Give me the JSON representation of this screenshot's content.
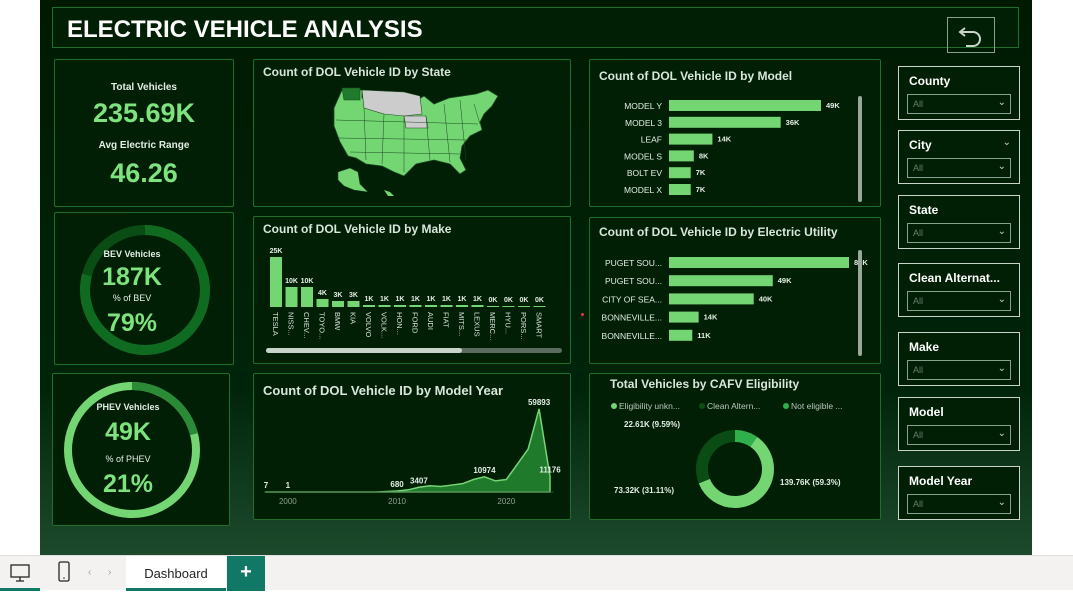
{
  "header": {
    "title": "ELECTRIC VEHICLE ANALYSIS",
    "back_icon": "undo-arrow-icon"
  },
  "kpis": {
    "total_label": "Total Vehicles",
    "total_value": "235.69K",
    "range_label": "Avg Electric Range",
    "range_value": "46.26"
  },
  "bev": {
    "label": "BEV Vehicles",
    "value": "187K",
    "pct_label": "% of BEV",
    "pct_value": "79%",
    "fraction": 0.79
  },
  "phev": {
    "label": "PHEV Vehicles",
    "value": "49K",
    "pct_label": "% of PHEV",
    "pct_value": "21%",
    "fraction": 0.21
  },
  "map_panel": {
    "title": "Count of DOL Vehicle ID by State"
  },
  "make_panel": {
    "title": "Count of DOL Vehicle ID by Make"
  },
  "model_panel": {
    "title": "Count of DOL Vehicle ID by Model"
  },
  "utility_panel": {
    "title": "Count of DOL Vehicle ID by Electric Utility"
  },
  "year_panel": {
    "title": "Count of DOL Vehicle ID by Model Year"
  },
  "cafv_panel": {
    "title": "Total Vehicles by CAFV Eligibility"
  },
  "slicers": [
    {
      "label": "County",
      "value": "All"
    },
    {
      "label": "City",
      "value": "All"
    },
    {
      "label": "State",
      "value": "All"
    },
    {
      "label": "Clean Alternat...",
      "value": "All"
    },
    {
      "label": "Make",
      "value": "All"
    },
    {
      "label": "Model",
      "value": "All"
    },
    {
      "label": "Model Year",
      "value": "All"
    }
  ],
  "bottom": {
    "desktop_icon": "desktop-view-icon",
    "mobile_icon": "mobile-view-icon",
    "tab_label": "Dashboard",
    "add_label": "+"
  },
  "colors": {
    "bar": "#73d673",
    "accent": "#117865",
    "dark_ring": "#0a4d14",
    "light_ring": "#73d673"
  },
  "chart_data": [
    {
      "type": "bar",
      "orientation": "vertical",
      "title": "Count of DOL Vehicle ID by Make",
      "categories": [
        "TESLA",
        "NISS...",
        "CHEV...",
        "TOYO...",
        "BMW",
        "KIA",
        "VOLVO",
        "VOLK...",
        "HON...",
        "FORD",
        "AUDI",
        "FIAT",
        "MITS...",
        "LEXUS",
        "MERC...",
        "HYU...",
        "PORS...",
        "SMART"
      ],
      "values": [
        25,
        10,
        10,
        4,
        3,
        3,
        1,
        1,
        1,
        1,
        1,
        1,
        1,
        1,
        0.5,
        0.5,
        0.5,
        0.5
      ],
      "labels": [
        "25K",
        "10K",
        "10K",
        "4K",
        "3K",
        "3K",
        "1K",
        "1K",
        "1K",
        "1K",
        "1K",
        "1K",
        "1K",
        "1K",
        "0K",
        "0K",
        "0K",
        "0K"
      ]
    },
    {
      "type": "bar",
      "orientation": "horizontal",
      "title": "Count of DOL Vehicle ID by Model",
      "categories": [
        "MODEL Y",
        "MODEL 3",
        "LEAF",
        "MODEL S",
        "BOLT EV",
        "MODEL X"
      ],
      "values": [
        49,
        36,
        14,
        8,
        7,
        7
      ],
      "labels": [
        "49K",
        "36K",
        "14K",
        "8K",
        "7K",
        "7K"
      ]
    },
    {
      "type": "bar",
      "orientation": "horizontal",
      "title": "Count of DOL Vehicle ID by Electric Utility",
      "categories": [
        "PUGET SOU...",
        "PUGET SOU...",
        "CITY OF SEA...",
        "BONNEVILLE...",
        "BONNEVILLE..."
      ],
      "values": [
        85,
        49,
        40,
        14,
        11
      ],
      "labels": [
        "85K",
        "49K",
        "40K",
        "14K",
        "11K"
      ]
    },
    {
      "type": "area",
      "title": "Count of DOL Vehicle ID by Model Year",
      "x": [
        1998,
        2000,
        2002,
        2004,
        2006,
        2008,
        2010,
        2011,
        2012,
        2013,
        2014,
        2015,
        2016,
        2017,
        2018,
        2019,
        2020,
        2021,
        2022,
        2023,
        2024
      ],
      "y": [
        7,
        1,
        1,
        1,
        1,
        20,
        680,
        1500,
        3407,
        4500,
        4000,
        5000,
        6000,
        9000,
        10974,
        8000,
        9000,
        20000,
        31000,
        59893,
        11176
      ],
      "point_labels": [
        {
          "x": 1998,
          "label": "7"
        },
        {
          "x": 2000,
          "label": "1"
        },
        {
          "x": 2010,
          "label": "680"
        },
        {
          "x": 2012,
          "label": "3407"
        },
        {
          "x": 2018,
          "label": "10974"
        },
        {
          "x": 2023,
          "label": "59893"
        },
        {
          "x": 2024,
          "label": "11176"
        }
      ],
      "x_ticks": [
        "2000",
        "2010",
        "2020"
      ]
    },
    {
      "type": "pie",
      "variant": "donut",
      "title": "Total Vehicles by CAFV Eligibility",
      "legend": [
        "Eligibility unkn...",
        "Clean Altern...",
        "Not eligible ..."
      ],
      "legend_position": "top",
      "slices": [
        {
          "name": "Eligibility unkn...",
          "value": 139.76,
          "label": "139.76K (59.3%)",
          "color": "#73d673"
        },
        {
          "name": "Clean Altern...",
          "value": 73.32,
          "label": "73.32K (31.11%)",
          "color": "#0a4d14"
        },
        {
          "name": "Not eligible ...",
          "value": 22.61,
          "label": "22.61K (9.59%)",
          "color": "#2fb04a"
        }
      ]
    }
  ]
}
